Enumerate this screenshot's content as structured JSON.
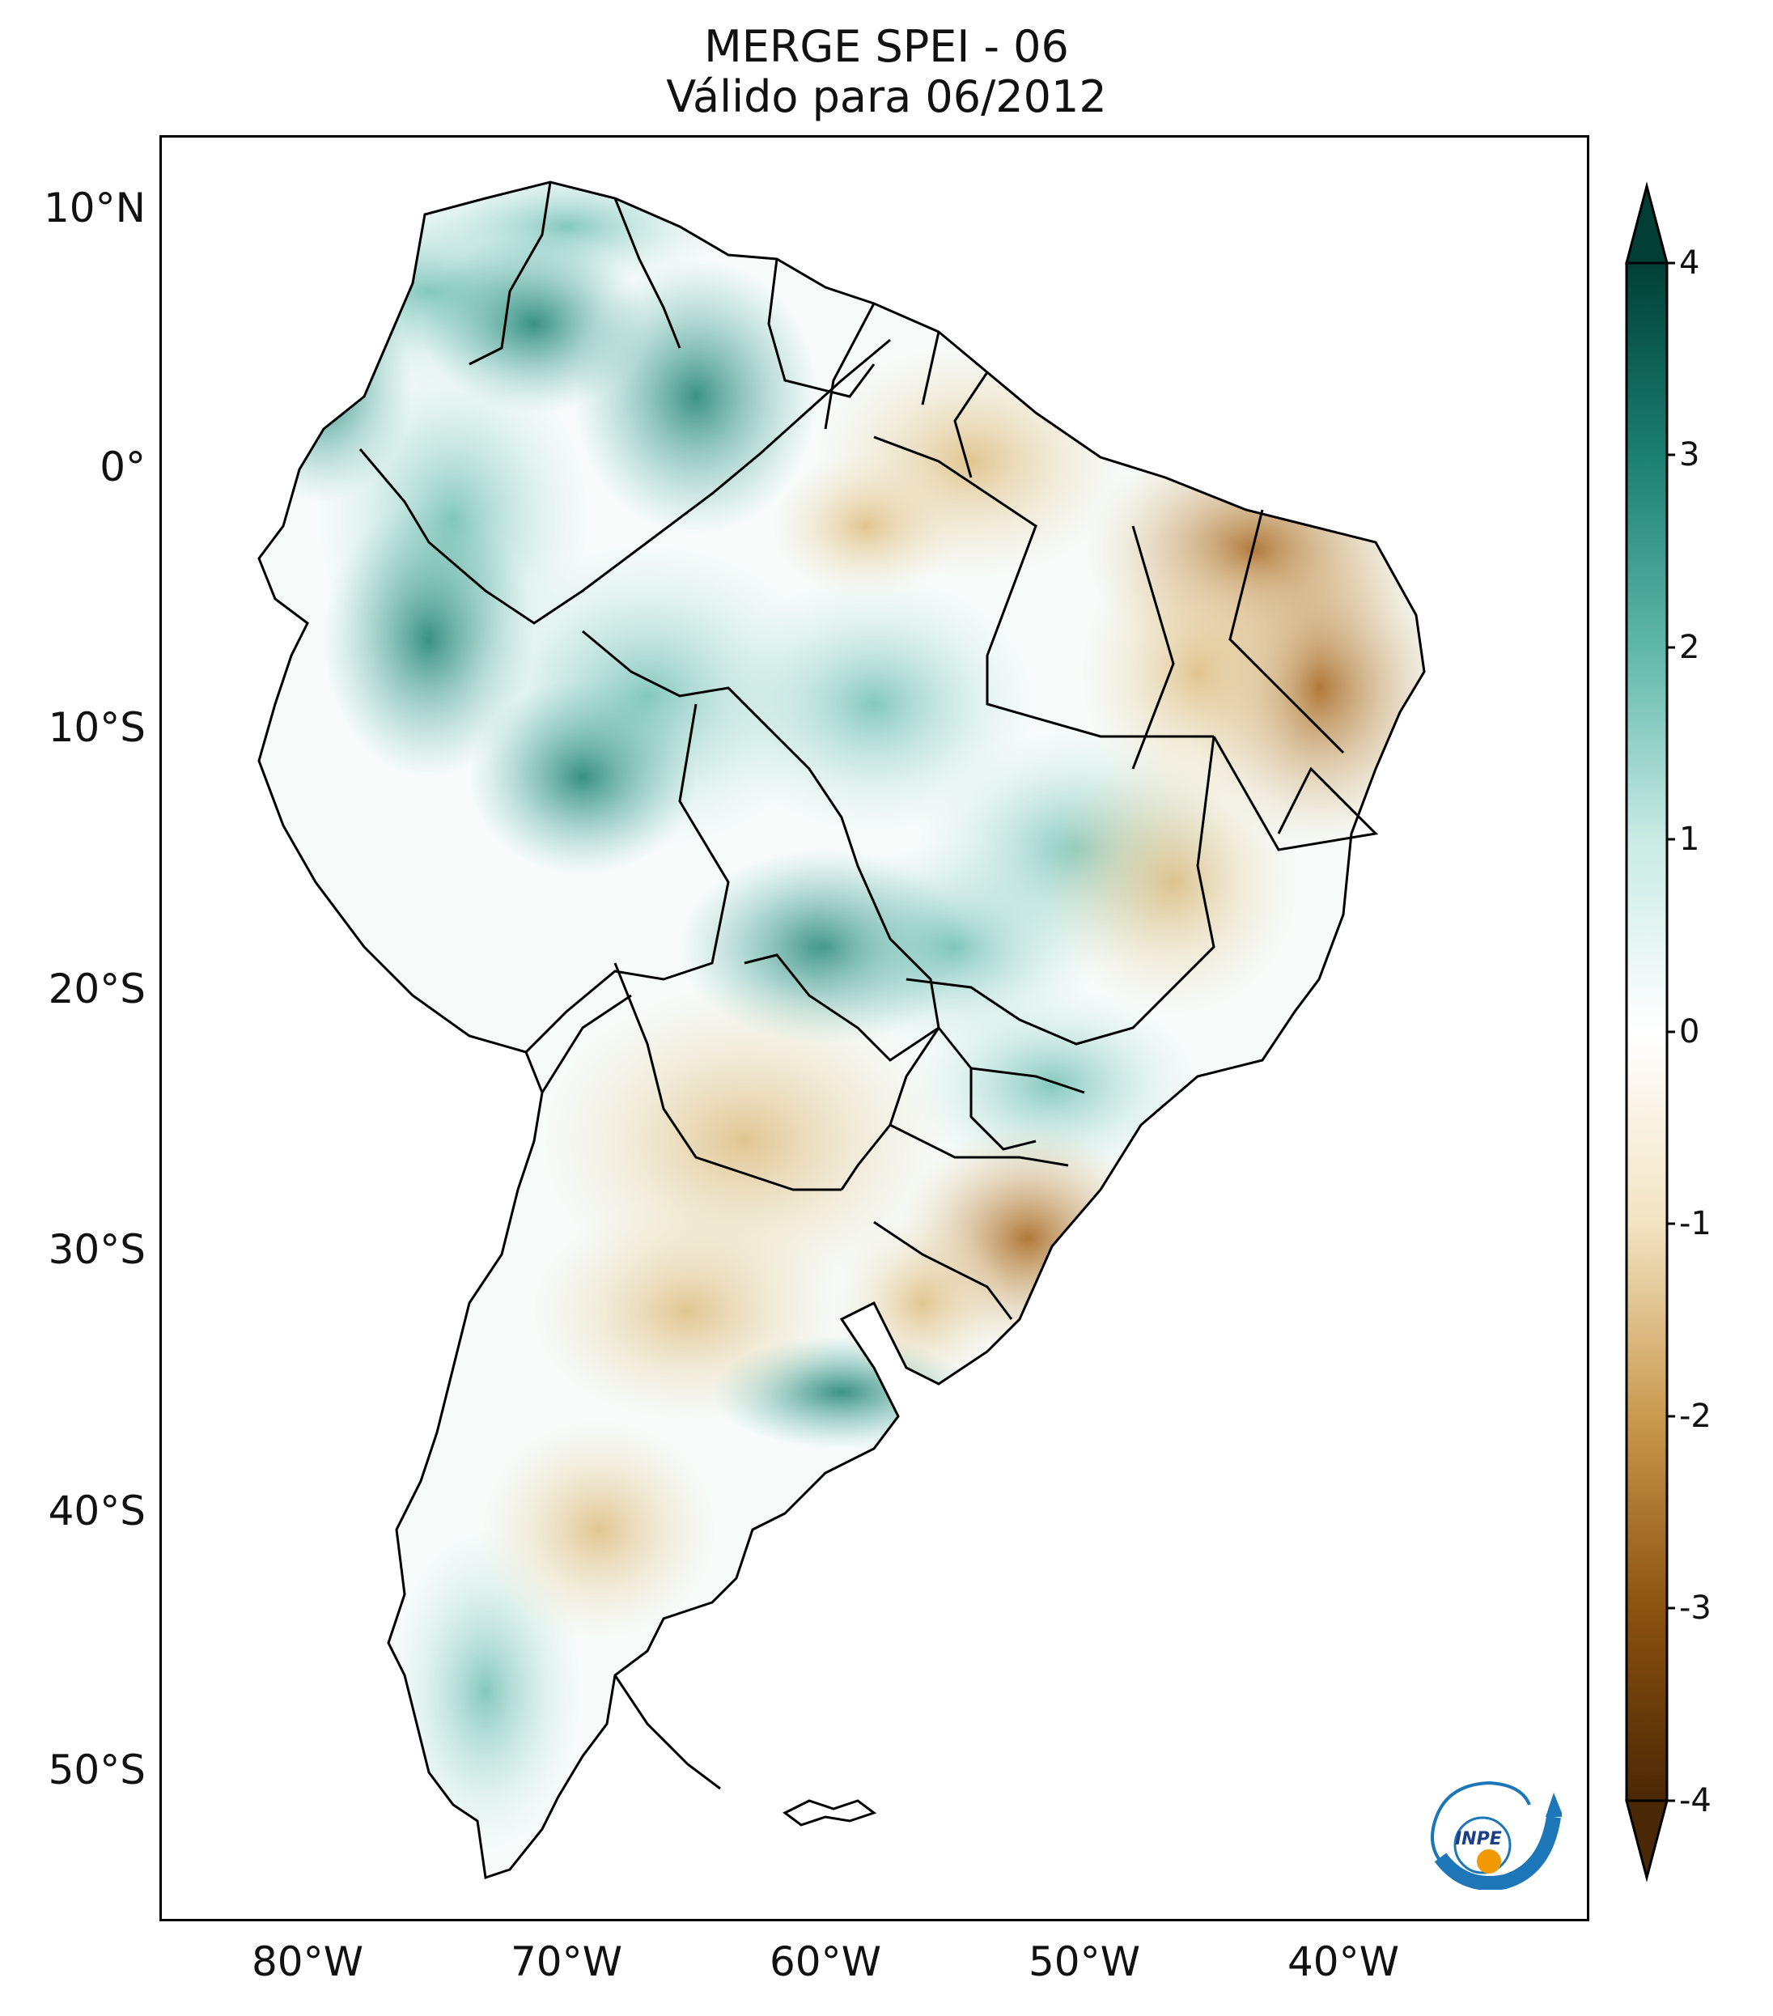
{
  "title": {
    "line1": "MERGE   SPEI - 06",
    "line2": "Válido para 06/2012"
  },
  "map": {
    "lat_ticks": [
      "10°N",
      "0°",
      "10°S",
      "20°S",
      "30°S",
      "40°S",
      "50°S"
    ],
    "lon_ticks": [
      "80°W",
      "70°W",
      "60°W",
      "50°W",
      "40°W"
    ],
    "wet_color": "#0f6b5e",
    "dry_color": "#8c520f"
  },
  "colorbar": {
    "min": -4,
    "max": 4,
    "tick_labels": [
      "4",
      "3",
      "2",
      "1",
      "0",
      "-1",
      "-2",
      "-3",
      "-4"
    ],
    "colors": [
      "#4a2806",
      "#8c520f",
      "#c99a4f",
      "#f2e3c2",
      "#ffffff",
      "#c9ebe4",
      "#5fb7a9",
      "#1b7f71",
      "#013f36"
    ]
  },
  "logo": {
    "text": "INPE"
  }
}
